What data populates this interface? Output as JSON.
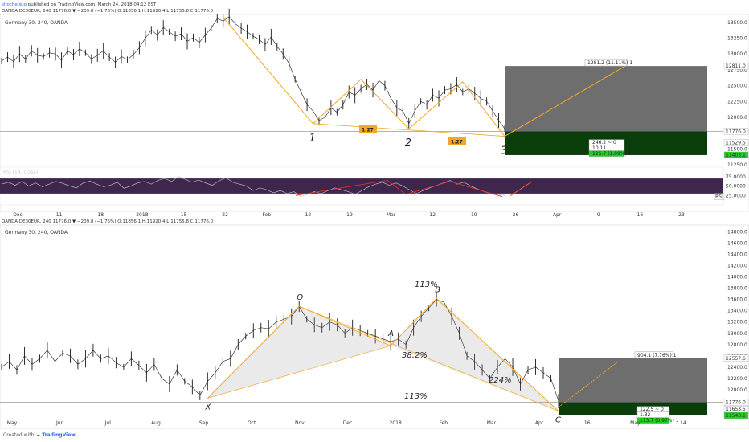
{
  "header": {
    "publisher": "slrochelsuo",
    "published_text": "published on TradingView.com, March 24, 2018 04:12 EST",
    "top_ticker_line": "OANDA:DE30EUR, 240  11776.0 ▼ −209.8 (−1.75%)  O:11856.1  H:11920.4  L:11755.8  C:11776.0",
    "bottom_ticker_line": "OANDA:DE30EUR, 240  11776.0 ▼ −209.8 (−1.75%)  O:11856.1  H:11920.4  L:11755.8  C:11776.0"
  },
  "colors": {
    "candle": "#1a1a1a",
    "pattern": "#f5a623",
    "rsi_line": "#777777",
    "rsi_band": "#2a0e3a",
    "divergence": "#e03030",
    "box_grey": "#555555",
    "green": "#1fd11f",
    "arrow_up": "#ff6600"
  },
  "chart_data": [
    {
      "type": "line",
      "title": "Germany 30, 240, OANDA",
      "y_ticks": [
        "13500.0",
        "13250.0",
        "13000.0",
        "12750.0",
        "12500.0",
        "12250.0",
        "12000.0",
        "11750.0",
        "11500.0",
        "11250.0"
      ],
      "x_ticks": [
        "Dec",
        "11",
        "18",
        "2018",
        "15",
        "22",
        "Feb",
        "12",
        "19",
        "Mar",
        "12",
        "19",
        "26",
        "Apr",
        "9",
        "16",
        "23"
      ],
      "ylim": [
        11250,
        13600
      ],
      "price_series": [
        12890,
        12950,
        12880,
        13000,
        12920,
        13050,
        12980,
        12960,
        13020,
        13000,
        12900,
        13050,
        12990,
        13080,
        13020,
        12920,
        12980,
        13050,
        12950,
        12870,
        12960,
        12910,
        12990,
        13100,
        13250,
        13380,
        13300,
        13420,
        13350,
        13280,
        13320,
        13200,
        13260,
        13180,
        13300,
        13410,
        13560,
        13520,
        13590,
        13480,
        13410,
        13350,
        13280,
        13230,
        13150,
        13270,
        13120,
        13000,
        12850,
        12600,
        12400,
        12200,
        12100,
        11950,
        12000,
        12150,
        12080,
        12200,
        12400,
        12350,
        12450,
        12520,
        12430,
        12580,
        12500,
        12300,
        12150,
        12100,
        11900,
        12100,
        12250,
        12200,
        12350,
        12300,
        12430,
        12450,
        12520,
        12400,
        12450,
        12380,
        12300,
        12250,
        12100,
        11950,
        11820
      ],
      "pattern_points": [
        {
          "label": "",
          "value": 13580
        },
        {
          "label": "1",
          "value": 11900
        },
        {
          "label": "",
          "value": 12600
        },
        {
          "label": "2",
          "value": 11820
        },
        {
          "label": "",
          "value": 12560
        },
        {
          "label": "3",
          "value": 11700
        }
      ],
      "fib_labels": [
        "1.27",
        "1.27"
      ],
      "current_price": "11776.0",
      "target_price": "12811.0",
      "stop_price": "11403.1",
      "extra_price": "11529.5",
      "target_label": "1281.2 (11.11%) 1",
      "risk_labels": [
        "246.2 ~ 0",
        "10.11",
        "125.7 (1.09%) 1"
      ],
      "rsi": {
        "label": "RSI (14, close)",
        "y_ticks": [
          "75.0000",
          "50.0000",
          "25.0000"
        ],
        "current": "RSI",
        "values": [
          55,
          60,
          52,
          62,
          50,
          58,
          48,
          55,
          62,
          57,
          50,
          45,
          58,
          63,
          55,
          48,
          52,
          60,
          44,
          50,
          58,
          62,
          55,
          65,
          70,
          62,
          75,
          68,
          60,
          66,
          58,
          52,
          64,
          72,
          60,
          55,
          50,
          38,
          45,
          40,
          32,
          38,
          30,
          35,
          22,
          28,
          35,
          30,
          38,
          45,
          40,
          35,
          28,
          38,
          48,
          55,
          60,
          52,
          58,
          50,
          40,
          30,
          38,
          45,
          52,
          58,
          65,
          55,
          60,
          50,
          42,
          35,
          30,
          28,
          25
        ]
      }
    },
    {
      "type": "line",
      "title": "Germany 30, 240, OANDA",
      "y_ticks": [
        "14800.0",
        "14600.0",
        "14400.0",
        "14200.0",
        "14000.0",
        "13800.0",
        "13600.0",
        "13400.0",
        "13200.0",
        "13000.0",
        "12800.0",
        "12600.0",
        "12400.0",
        "12200.0",
        "12000.0",
        "11800.0",
        "11600.0"
      ],
      "x_ticks": [
        "May",
        "Jun",
        "Jul",
        "Aug",
        "Sep",
        "Oct",
        "Nov",
        "Dec",
        "2018",
        "Feb",
        "Mar",
        "Apr",
        "16",
        "May",
        "14"
      ],
      "ylim": [
        11500,
        14850
      ],
      "price_series": [
        12400,
        12500,
        12350,
        12600,
        12450,
        12550,
        12700,
        12500,
        12650,
        12600,
        12450,
        12550,
        12700,
        12550,
        12600,
        12480,
        12400,
        12550,
        12430,
        12300,
        12450,
        12200,
        12100,
        12350,
        12150,
        12050,
        11900,
        12150,
        12300,
        12500,
        12550,
        12800,
        12950,
        13050,
        13100,
        13080,
        13200,
        13250,
        13300,
        13480,
        13250,
        13150,
        13100,
        13200,
        13150,
        13000,
        13100,
        13050,
        13000,
        12950,
        12900,
        12850,
        12900,
        12800,
        13100,
        13300,
        13450,
        13600,
        13550,
        13300,
        13000,
        12600,
        12500,
        12350,
        12200,
        12400,
        12550,
        12400,
        12100,
        12350,
        12400,
        12300,
        12200,
        11800
      ],
      "pattern_points": [
        {
          "label": "X",
          "value": 11850
        },
        {
          "label": "O",
          "value": 13480
        },
        {
          "label": "A",
          "value": 12780
        },
        {
          "label": "B",
          "value": 13620
        },
        {
          "label": "C",
          "value": 11620
        }
      ],
      "annotations": [
        "38.2%",
        "113%",
        "224%",
        "113%"
      ],
      "price_labels": [
        "12557.6",
        "11776.0",
        "11653.5",
        "11543.1"
      ],
      "target_label": "904.1 (7.76%) 1",
      "risk_labels": [
        "122.5 ~ 0",
        "1.32",
        "113.7 (0.97%) 1"
      ]
    }
  ],
  "footer": {
    "created_with": "Created with",
    "brand": "TradingView"
  }
}
